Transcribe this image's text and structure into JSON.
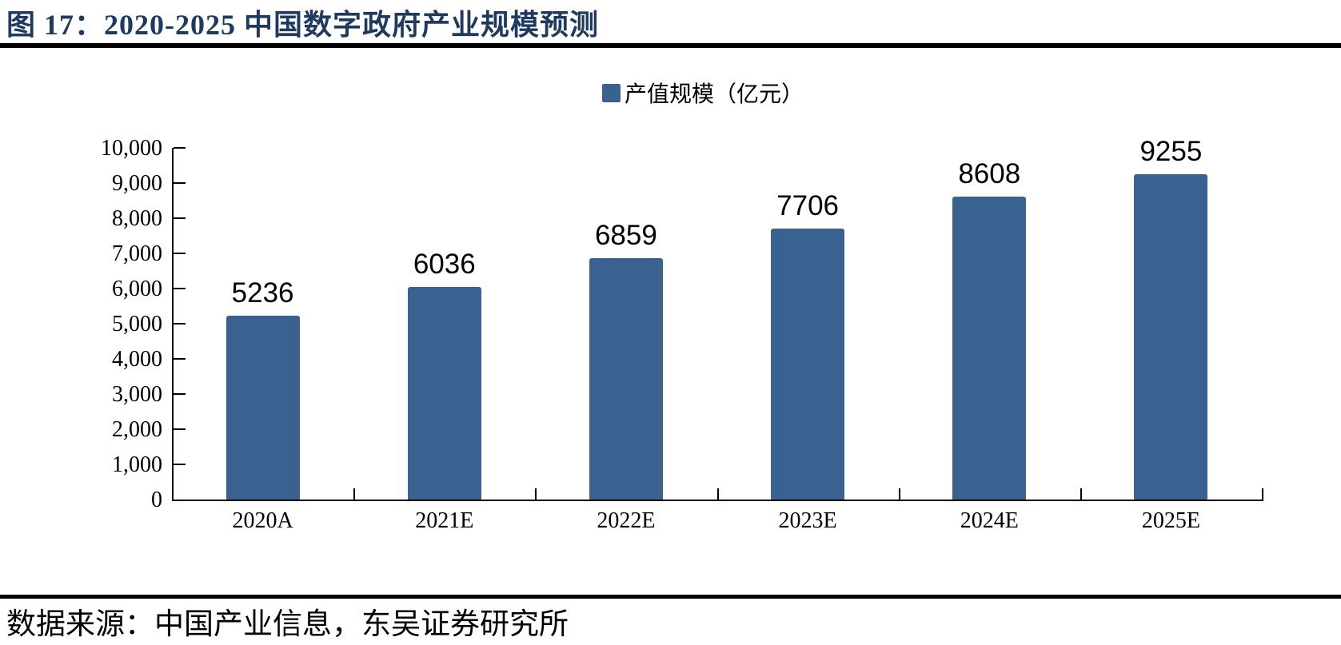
{
  "title": "图 17：2020-2025 中国数字政府产业规模预测",
  "source": "数据来源：中国产业信息，东吴证券研究所",
  "legend": {
    "label": "产值规模（亿元）",
    "marker_color": "#3A6290"
  },
  "colors": {
    "bar": "#3A6290",
    "title_text": "#1F3A5F",
    "axis": "#000000",
    "rule": "#000000",
    "label_text": "#000000"
  },
  "chart_data": {
    "type": "bar",
    "title": "图 17：2020-2025 中国数字政府产业规模预测",
    "series_name": "产值规模（亿元）",
    "categories": [
      "2020A",
      "2021E",
      "2022E",
      "2023E",
      "2024E",
      "2025E"
    ],
    "values": [
      5236,
      6036,
      6859,
      7706,
      8608,
      9255
    ],
    "xlabel": "",
    "ylabel": "",
    "ylim": [
      0,
      10000
    ],
    "ytick_interval": 1000,
    "ytick_labels": [
      "0",
      "1,000",
      "2,000",
      "3,000",
      "4,000",
      "5,000",
      "6,000",
      "7,000",
      "8,000",
      "9,000",
      "10,000"
    ],
    "grid": false,
    "data_labels": true,
    "legend_position": "top-center"
  }
}
